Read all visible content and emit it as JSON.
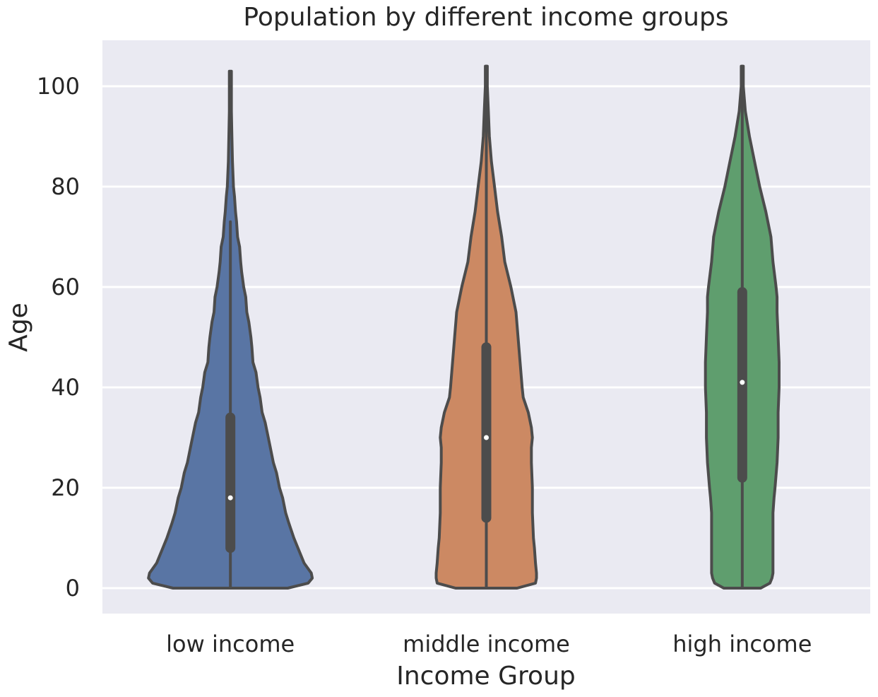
{
  "chart_data": {
    "type": "violin",
    "title": "Population by different income groups",
    "xlabel": "Income Group",
    "ylabel": "Age",
    "categories": [
      "low income",
      "middle income",
      "high income"
    ],
    "colors": [
      "#5975a4",
      "#cc8963",
      "#5f9e6e"
    ],
    "ylim": [
      -5,
      109
    ],
    "yticks": [
      0,
      20,
      40,
      60,
      80,
      100
    ],
    "grid": true,
    "background": "#eaeaf2",
    "series": [
      {
        "min": 0,
        "max": 103,
        "q1": 8,
        "median": 18,
        "q3": 34,
        "whisker_low": 0,
        "whisker_high": 73,
        "profile": [
          [
            0,
            0.56
          ],
          [
            1,
            0.76
          ],
          [
            2,
            0.8
          ],
          [
            3,
            0.79
          ],
          [
            5,
            0.72
          ],
          [
            8,
            0.66
          ],
          [
            10,
            0.62
          ],
          [
            13,
            0.57
          ],
          [
            15,
            0.54
          ],
          [
            18,
            0.51
          ],
          [
            20,
            0.48
          ],
          [
            23,
            0.45
          ],
          [
            25,
            0.42
          ],
          [
            28,
            0.39
          ],
          [
            30,
            0.37
          ],
          [
            33,
            0.34
          ],
          [
            35,
            0.31
          ],
          [
            38,
            0.29
          ],
          [
            40,
            0.27
          ],
          [
            43,
            0.25
          ],
          [
            45,
            0.22
          ],
          [
            48,
            0.21
          ],
          [
            50,
            0.2
          ],
          [
            53,
            0.18
          ],
          [
            55,
            0.16
          ],
          [
            58,
            0.15
          ],
          [
            60,
            0.13
          ],
          [
            63,
            0.11
          ],
          [
            65,
            0.1
          ],
          [
            68,
            0.09
          ],
          [
            70,
            0.07
          ],
          [
            73,
            0.06
          ],
          [
            75,
            0.05
          ],
          [
            78,
            0.04
          ],
          [
            80,
            0.03
          ],
          [
            85,
            0.02
          ],
          [
            90,
            0.015
          ],
          [
            95,
            0.01
          ],
          [
            103,
            0.01
          ]
        ]
      },
      {
        "min": 0,
        "max": 104,
        "q1": 14,
        "median": 30,
        "q3": 48,
        "whisker_low": 0,
        "whisker_high": 104,
        "profile": [
          [
            0,
            0.3
          ],
          [
            1,
            0.48
          ],
          [
            2,
            0.49
          ],
          [
            3,
            0.49
          ],
          [
            5,
            0.48
          ],
          [
            8,
            0.47
          ],
          [
            10,
            0.46
          ],
          [
            15,
            0.45
          ],
          [
            20,
            0.45
          ],
          [
            25,
            0.44
          ],
          [
            28,
            0.44
          ],
          [
            30,
            0.45
          ],
          [
            32,
            0.44
          ],
          [
            35,
            0.41
          ],
          [
            38,
            0.36
          ],
          [
            40,
            0.35
          ],
          [
            45,
            0.33
          ],
          [
            50,
            0.31
          ],
          [
            55,
            0.29
          ],
          [
            60,
            0.24
          ],
          [
            65,
            0.18
          ],
          [
            70,
            0.15
          ],
          [
            75,
            0.11
          ],
          [
            80,
            0.08
          ],
          [
            85,
            0.05
          ],
          [
            90,
            0.03
          ],
          [
            95,
            0.02
          ],
          [
            100,
            0.01
          ],
          [
            104,
            0.01
          ]
        ]
      },
      {
        "min": 0,
        "max": 104,
        "q1": 22,
        "median": 41,
        "q3": 59,
        "whisker_low": 0,
        "whisker_high": 104,
        "profile": [
          [
            0,
            0.18
          ],
          [
            1,
            0.27
          ],
          [
            2,
            0.29
          ],
          [
            3,
            0.3
          ],
          [
            5,
            0.3
          ],
          [
            10,
            0.3
          ],
          [
            15,
            0.3
          ],
          [
            18,
            0.31
          ],
          [
            20,
            0.32
          ],
          [
            25,
            0.34
          ],
          [
            30,
            0.35
          ],
          [
            35,
            0.35
          ],
          [
            40,
            0.36
          ],
          [
            45,
            0.36
          ],
          [
            50,
            0.35
          ],
          [
            55,
            0.34
          ],
          [
            58,
            0.34
          ],
          [
            60,
            0.33
          ],
          [
            65,
            0.3
          ],
          [
            70,
            0.28
          ],
          [
            75,
            0.23
          ],
          [
            80,
            0.17
          ],
          [
            85,
            0.12
          ],
          [
            90,
            0.07
          ],
          [
            95,
            0.03
          ],
          [
            100,
            0.01
          ],
          [
            104,
            0.01
          ]
        ]
      }
    ]
  }
}
